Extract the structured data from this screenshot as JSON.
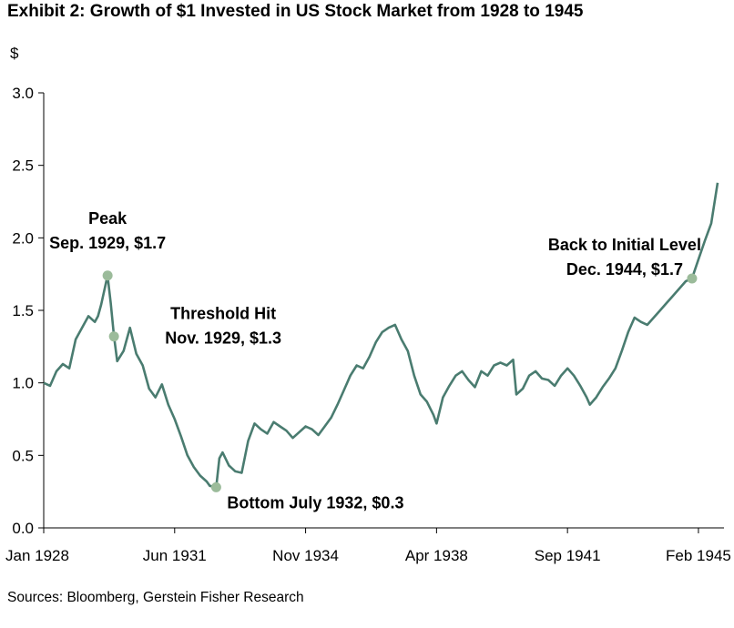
{
  "chart_data": {
    "type": "line",
    "title": "Exhibit 2: Growth of $1 Invested in US Stock Market from 1928 to 1945",
    "ylabel": "$",
    "xlabel": "",
    "ylim": [
      0,
      3.0
    ],
    "yticks": [
      "0.0",
      "0.5",
      "1.0",
      "1.5",
      "2.0",
      "2.5",
      "3.0"
    ],
    "xticks": [
      "Jan 1928",
      "Jun 1931",
      "Nov 1934",
      "Apr 1938",
      "Sep 1941",
      "Feb 1945"
    ],
    "grid": false,
    "legend": "none",
    "line_color": "#4a7c70",
    "marker_color": "#9bbb9a",
    "x": [
      "1928-01",
      "1928-03",
      "1928-05",
      "1928-07",
      "1928-09",
      "1928-11",
      "1929-01",
      "1929-03",
      "1929-05",
      "1929-06",
      "1929-07",
      "1929-09",
      "1929-10",
      "1929-11",
      "1929-12",
      "1930-02",
      "1930-04",
      "1930-06",
      "1930-08",
      "1930-10",
      "1930-12",
      "1931-02",
      "1931-04",
      "1931-06",
      "1931-08",
      "1931-10",
      "1931-12",
      "1932-02",
      "1932-04",
      "1932-05",
      "1932-07",
      "1932-08",
      "1932-09",
      "1932-11",
      "1933-01",
      "1933-03",
      "1933-05",
      "1933-07",
      "1933-09",
      "1933-11",
      "1934-01",
      "1934-03",
      "1934-05",
      "1934-07",
      "1934-09",
      "1934-11",
      "1935-01",
      "1935-03",
      "1935-05",
      "1935-07",
      "1935-09",
      "1935-11",
      "1936-01",
      "1936-03",
      "1936-05",
      "1936-07",
      "1936-09",
      "1936-11",
      "1937-01",
      "1937-03",
      "1937-05",
      "1937-07",
      "1937-09",
      "1937-11",
      "1938-01",
      "1938-03",
      "1938-04",
      "1938-06",
      "1938-08",
      "1938-10",
      "1938-12",
      "1939-02",
      "1939-04",
      "1939-06",
      "1939-08",
      "1939-10",
      "1939-12",
      "1940-02",
      "1940-04",
      "1940-05",
      "1940-07",
      "1940-09",
      "1940-11",
      "1941-01",
      "1941-03",
      "1941-05",
      "1941-07",
      "1941-09",
      "1941-11",
      "1942-01",
      "1942-03",
      "1942-04",
      "1942-06",
      "1942-08",
      "1942-10",
      "1942-12",
      "1943-02",
      "1943-04",
      "1943-06",
      "1943-08",
      "1943-10",
      "1943-12",
      "1944-02",
      "1944-04",
      "1944-06",
      "1944-08",
      "1944-10",
      "1944-12",
      "1945-02",
      "1945-04",
      "1945-06",
      "1945-08"
    ],
    "series": [
      {
        "values": [
          1.0,
          0.98,
          1.08,
          1.13,
          1.1,
          1.3,
          1.38,
          1.46,
          1.42,
          1.46,
          1.54,
          1.74,
          1.55,
          1.32,
          1.15,
          1.22,
          1.38,
          1.2,
          1.12,
          0.96,
          0.9,
          0.99,
          0.85,
          0.75,
          0.63,
          0.5,
          0.42,
          0.36,
          0.32,
          0.29,
          0.28,
          0.48,
          0.52,
          0.43,
          0.39,
          0.38,
          0.6,
          0.72,
          0.68,
          0.65,
          0.73,
          0.7,
          0.67,
          0.62,
          0.66,
          0.7,
          0.68,
          0.64,
          0.7,
          0.76,
          0.85,
          0.95,
          1.05,
          1.12,
          1.1,
          1.18,
          1.28,
          1.35,
          1.38,
          1.4,
          1.3,
          1.22,
          1.05,
          0.92,
          0.87,
          0.78,
          0.72,
          0.9,
          0.98,
          1.05,
          1.08,
          1.02,
          0.97,
          1.08,
          1.05,
          1.12,
          1.14,
          1.12,
          1.16,
          0.92,
          0.96,
          1.05,
          1.08,
          1.03,
          1.02,
          0.98,
          1.05,
          1.1,
          1.05,
          0.98,
          0.9,
          0.85,
          0.9,
          0.97,
          1.03,
          1.1,
          1.22,
          1.35,
          1.45,
          1.42,
          1.4,
          1.45,
          1.5,
          1.55,
          1.6,
          1.65,
          1.7,
          1.72,
          1.85,
          1.98,
          2.1,
          2.38
        ]
      }
    ],
    "annotations": [
      {
        "date": "1929-09",
        "value": 1.74,
        "lines": [
          "Peak",
          "Sep. 1929, $1.7"
        ]
      },
      {
        "date": "1929-11",
        "value": 1.32,
        "lines": [
          "Threshold Hit",
          "Nov. 1929, $1.3"
        ]
      },
      {
        "date": "1932-07",
        "value": 0.28,
        "lines": [
          "Bottom July 1932, $0.3"
        ]
      },
      {
        "date": "1944-12",
        "value": 1.72,
        "lines": [
          "Back to Initial Level",
          "Dec. 1944, $1.7"
        ]
      }
    ]
  },
  "source": "Sources: Bloomberg, Gerstein Fisher Research"
}
